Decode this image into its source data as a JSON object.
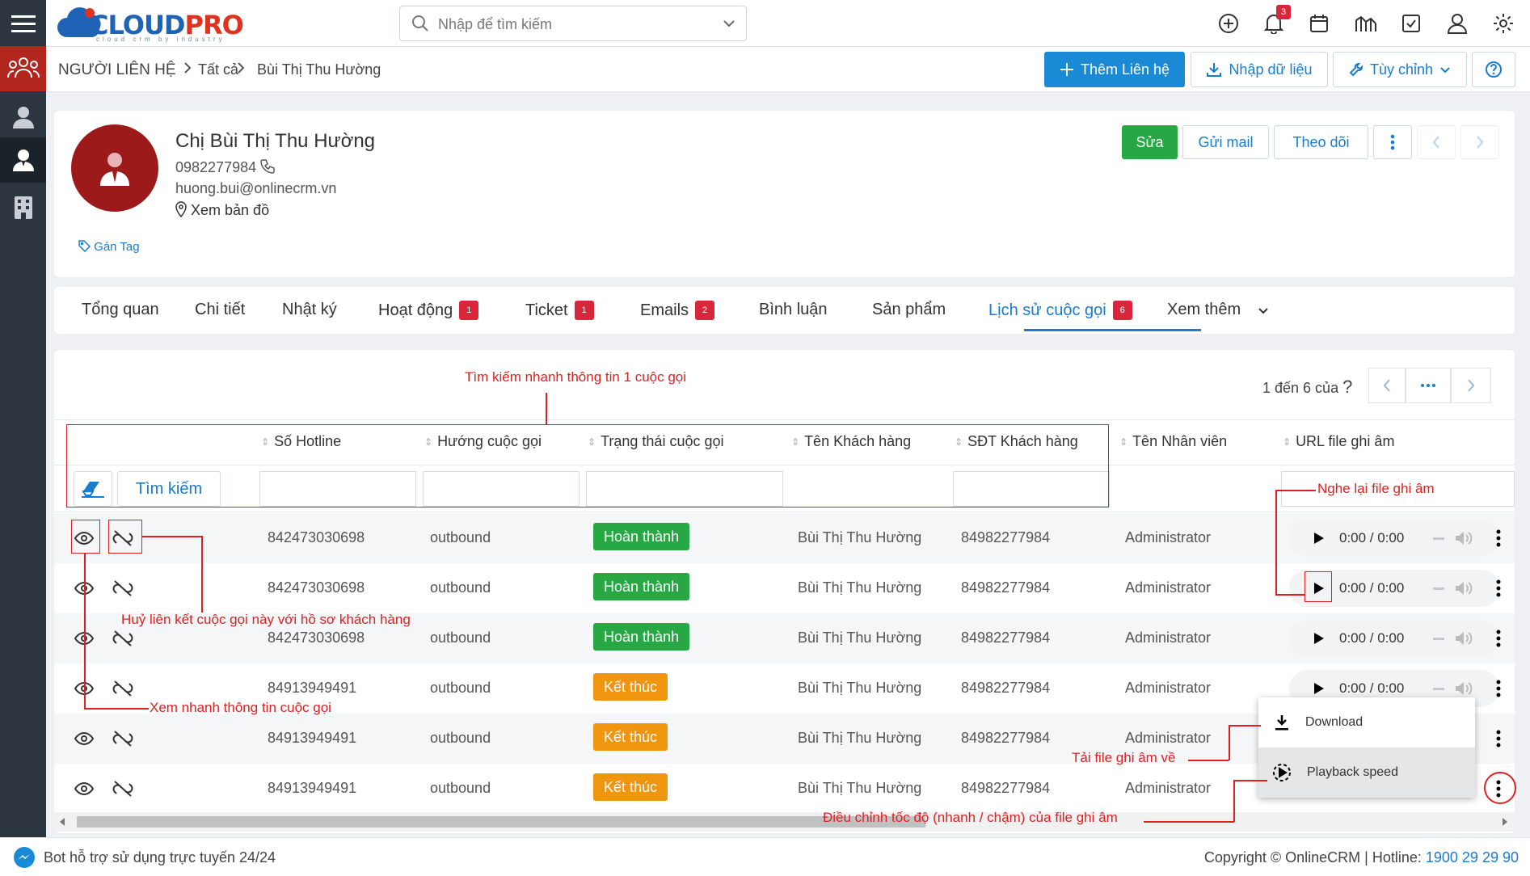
{
  "app": {
    "logo_main": "CLOUD",
    "logo_accent": "PRO",
    "logo_sub": "cloud crm by industry",
    "search_placeholder": "Nhập để tìm kiếm",
    "notification_count": "3"
  },
  "breadcrumb": {
    "module": "NGƯỜI LIÊN HỆ",
    "level1": "Tất cả",
    "level2": "Bùi Thị Thu Hường"
  },
  "toolbar": {
    "add_contact": "Thêm Liên hệ",
    "import_data": "Nhập dữ liệu",
    "customize": "Tùy chỉnh"
  },
  "profile": {
    "name": "Chị Bùi Thị Thu Hường",
    "phone": "0982277984",
    "email": "huong.bui@onlinecrm.vn",
    "map_link": "Xem bản đồ",
    "tag_link": "Gán Tag",
    "edit_btn": "Sửa",
    "mail_btn": "Gửi mail",
    "follow_btn": "Theo dõi"
  },
  "tabs": [
    {
      "label": "Tổng quan",
      "badge": ""
    },
    {
      "label": "Chi tiết",
      "badge": ""
    },
    {
      "label": "Nhật ký",
      "badge": ""
    },
    {
      "label": "Hoạt động",
      "badge": "1"
    },
    {
      "label": "Ticket",
      "badge": "1"
    },
    {
      "label": "Emails",
      "badge": "2"
    },
    {
      "label": "Bình luận",
      "badge": ""
    },
    {
      "label": "Sản phẩm",
      "badge": ""
    },
    {
      "label": "Lịch sử cuộc gọi",
      "badge": "6"
    },
    {
      "label": "Xem thêm",
      "badge": ""
    }
  ],
  "pager": {
    "text": "1 đến 6 của",
    "question": "?"
  },
  "table": {
    "headers": [
      "Số Hotline",
      "Hướng cuộc gọi",
      "Trạng thái cuộc gọi",
      "Tên Khách hàng",
      "SĐT Khách hàng",
      "Tên Nhân viên",
      "URL file ghi âm"
    ],
    "search_btn": "Tìm kiếm",
    "rows": [
      {
        "hotline": "842473030698",
        "direction": "outbound",
        "status": "Hoàn thành",
        "customer": "Bùi Thị Thu Hường",
        "phone": "84982277984",
        "staff": "Administrator",
        "time": "0:00 / 0:00"
      },
      {
        "hotline": "842473030698",
        "direction": "outbound",
        "status": "Hoàn thành",
        "customer": "Bùi Thị Thu Hường",
        "phone": "84982277984",
        "staff": "Administrator",
        "time": "0:00 / 0:00"
      },
      {
        "hotline": "842473030698",
        "direction": "outbound",
        "status": "Hoàn thành",
        "customer": "Bùi Thị Thu Hường",
        "phone": "84982277984",
        "staff": "Administrator",
        "time": "0:00 / 0:00"
      },
      {
        "hotline": "84913949491",
        "direction": "outbound",
        "status": "Kết thúc",
        "customer": "Bùi Thị Thu Hường",
        "phone": "84982277984",
        "staff": "Administrator",
        "time": "0:00 / 0:00"
      },
      {
        "hotline": "84913949491",
        "direction": "outbound",
        "status": "Kết thúc",
        "customer": "Bùi Thị Thu Hường",
        "phone": "84982277984",
        "staff": "Administrator",
        "time": ""
      },
      {
        "hotline": "84913949491",
        "direction": "outbound",
        "status": "Kết thúc",
        "customer": "Bùi Thị Thu Hường",
        "phone": "84982277984",
        "staff": "Administrator",
        "time": ""
      }
    ]
  },
  "context_menu": {
    "download": "Download",
    "speed": "Playback speed"
  },
  "annotations": {
    "quick_search": "Tìm kiếm nhanh thông tin 1 cuộc gọi",
    "unlink": "Huỷ liên kết cuộc gọi này với hồ sơ khách hàng",
    "quick_view": "Xem nhanh thông tin cuộc gọi",
    "replay": "Nghe lại file ghi âm",
    "download_file": "Tải file ghi âm về",
    "speed_adjust": "Điều chỉnh tốc độ (nhanh / chậm) của file ghi âm"
  },
  "footer": {
    "bot": "Bot hỗ trợ sử dụng trực tuyến 24/24",
    "copyright": "Copyright © OnlineCRM | Hotline: ",
    "hotline": "1900 29 29 90"
  },
  "colors": {
    "primary": "#1a8ad6",
    "success": "#28a745",
    "warning": "#f0960e",
    "danger": "#d9263a",
    "sidebar": "#2d3640",
    "annotation": "#e02020"
  }
}
